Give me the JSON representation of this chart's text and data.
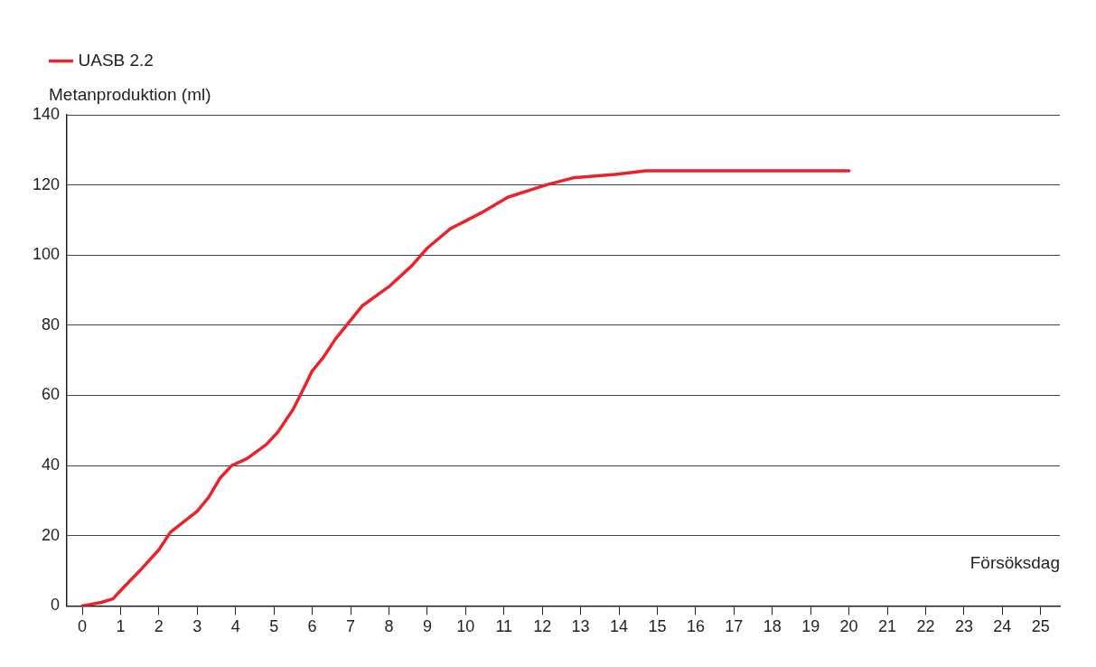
{
  "chart_data": {
    "type": "line",
    "ylabel": "Metanproduktion (ml)",
    "xlabel": "Försöksdag",
    "x": [
      0,
      0.5,
      0.8,
      1.1,
      1.5,
      2,
      2.3,
      3,
      3.3,
      3.6,
      3.9,
      4.3,
      4.8,
      5.1,
      5.5,
      5.8,
      6,
      6.3,
      6.6,
      7.3,
      8,
      8.6,
      9,
      9.6,
      10.4,
      11.1,
      12.1,
      12.8,
      13.9,
      14.7,
      20
    ],
    "series": [
      {
        "name": "UASB 2.2",
        "color": "#e8232a",
        "values": [
          0,
          1,
          2,
          5.5,
          10,
          16,
          21,
          27,
          31,
          36.5,
          40,
          42,
          46,
          49.5,
          56,
          62.5,
          67,
          71,
          76,
          85.5,
          91,
          97,
          102,
          107.5,
          112,
          116.5,
          120,
          122,
          123,
          124,
          124
        ]
      }
    ],
    "xlim": [
      -0.4,
      25.5
    ],
    "xticks": [
      0,
      1,
      2,
      3,
      4,
      5,
      6,
      7,
      8,
      9,
      10,
      11,
      12,
      13,
      14,
      15,
      16,
      17,
      18,
      19,
      20,
      21,
      22,
      23,
      24,
      25
    ],
    "ylim": [
      0,
      140
    ],
    "yticks": [
      0,
      20,
      40,
      60,
      80,
      100,
      120,
      140
    ],
    "grid": "y",
    "legend": "top left",
    "marker": "none",
    "line_style": "solid"
  }
}
